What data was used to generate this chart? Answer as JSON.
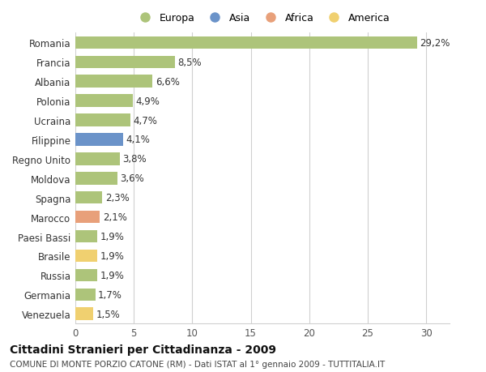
{
  "categories": [
    "Romania",
    "Francia",
    "Albania",
    "Polonia",
    "Ucraina",
    "Filippine",
    "Regno Unito",
    "Moldova",
    "Spagna",
    "Marocco",
    "Paesi Bassi",
    "Brasile",
    "Russia",
    "Germania",
    "Venezuela"
  ],
  "values": [
    29.2,
    8.5,
    6.6,
    4.9,
    4.7,
    4.1,
    3.8,
    3.6,
    2.3,
    2.1,
    1.9,
    1.9,
    1.9,
    1.7,
    1.5
  ],
  "labels": [
    "29,2%",
    "8,5%",
    "6,6%",
    "4,9%",
    "4,7%",
    "4,1%",
    "3,8%",
    "3,6%",
    "2,3%",
    "2,1%",
    "1,9%",
    "1,9%",
    "1,9%",
    "1,7%",
    "1,5%"
  ],
  "colors": [
    "#adc47a",
    "#adc47a",
    "#adc47a",
    "#adc47a",
    "#adc47a",
    "#6b93c9",
    "#adc47a",
    "#adc47a",
    "#adc47a",
    "#e8a07a",
    "#adc47a",
    "#f0d070",
    "#adc47a",
    "#adc47a",
    "#f0d070"
  ],
  "legend_labels": [
    "Europa",
    "Asia",
    "Africa",
    "America"
  ],
  "legend_colors": [
    "#adc47a",
    "#6b93c9",
    "#e8a07a",
    "#f0d070"
  ],
  "title": "Cittadini Stranieri per Cittadinanza - 2009",
  "subtitle": "COMUNE DI MONTE PORZIO CATONE (RM) - Dati ISTAT al 1° gennaio 2009 - TUTTITALIA.IT",
  "xlim": [
    0,
    32
  ],
  "xticks": [
    0,
    5,
    10,
    15,
    20,
    25,
    30
  ],
  "bg_color": "#ffffff",
  "grid_color": "#d0d0d0",
  "bar_height": 0.65,
  "label_fontsize": 8.5,
  "tick_fontsize": 8.5,
  "title_fontsize": 10,
  "subtitle_fontsize": 7.5
}
